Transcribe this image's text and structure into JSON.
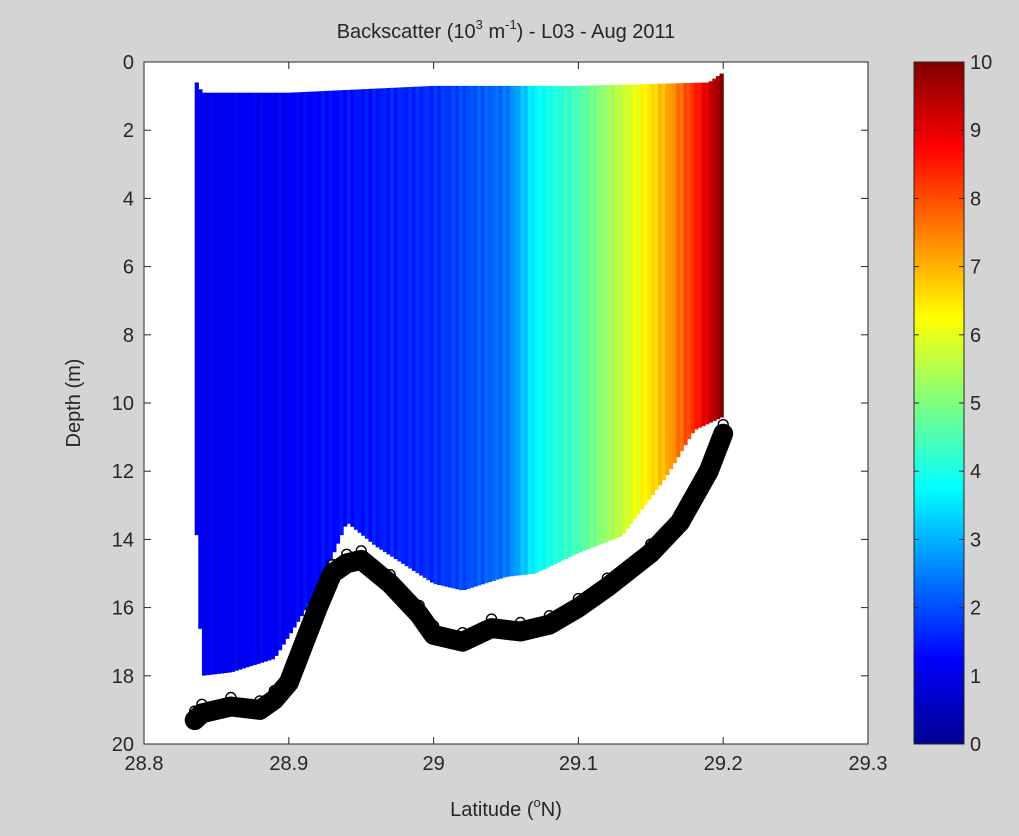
{
  "window": {
    "background": "#d4d4d4"
  },
  "chart_data": {
    "type": "heatmap",
    "title_parts": [
      "Backscatter (10",
      "3",
      " m",
      "-1",
      ") - L03 - Aug 2011"
    ],
    "xlabel_parts": [
      "Latitude (",
      "o",
      "N)"
    ],
    "ylabel": "Depth (m)",
    "xlim": [
      28.8,
      29.3
    ],
    "ylim": [
      0,
      20
    ],
    "y_reversed": true,
    "x_ticks": [
      "28.8",
      "28.9",
      "29",
      "29.1",
      "29.2",
      "29.3"
    ],
    "y_ticks": [
      "0",
      "2",
      "4",
      "6",
      "8",
      "10",
      "12",
      "14",
      "16",
      "18",
      "20"
    ],
    "grid": false,
    "colormap": "jet",
    "colorbar": {
      "label": "",
      "range": [
        0,
        10
      ],
      "ticks": [
        "0",
        "1",
        "2",
        "3",
        "4",
        "5",
        "6",
        "7",
        "8",
        "9",
        "10"
      ]
    },
    "series": [
      {
        "kind": "scatter-field",
        "value_gradient_by_latitude": [
          [
            28.83,
            0.9
          ],
          [
            28.9,
            1.0
          ],
          [
            29.0,
            1.5
          ],
          [
            29.05,
            2.2
          ],
          [
            29.07,
            3.5
          ],
          [
            29.1,
            4.3
          ],
          [
            29.13,
            5.5
          ],
          [
            29.16,
            6.8
          ],
          [
            29.18,
            8.2
          ],
          [
            29.2,
            9.8
          ]
        ],
        "upper_depth": [
          [
            28.835,
            0.5
          ],
          [
            28.84,
            0.9
          ],
          [
            28.9,
            0.9
          ],
          [
            29.0,
            0.7
          ],
          [
            29.1,
            0.7
          ],
          [
            29.19,
            0.6
          ],
          [
            29.2,
            0.3
          ]
        ],
        "lower_depth": [
          [
            28.835,
            12.5
          ],
          [
            28.84,
            18.0
          ],
          [
            28.86,
            17.9
          ],
          [
            28.89,
            17.5
          ],
          [
            28.92,
            15.5
          ],
          [
            28.94,
            13.5
          ],
          [
            28.96,
            14.2
          ],
          [
            29.0,
            15.3
          ],
          [
            29.02,
            15.5
          ],
          [
            29.05,
            15.1
          ],
          [
            29.07,
            15.0
          ],
          [
            29.1,
            14.4
          ],
          [
            29.13,
            13.9
          ],
          [
            29.16,
            12.2
          ],
          [
            29.18,
            10.8
          ],
          [
            29.2,
            10.4
          ]
        ]
      },
      {
        "kind": "bottom-depth",
        "marker": "open-circle",
        "points": [
          [
            28.835,
            19.3
          ],
          [
            28.84,
            19.1
          ],
          [
            28.86,
            18.9
          ],
          [
            28.88,
            19.0
          ],
          [
            28.89,
            18.7
          ],
          [
            28.9,
            18.2
          ],
          [
            28.91,
            17.1
          ],
          [
            28.92,
            16.0
          ],
          [
            28.93,
            15.0
          ],
          [
            28.94,
            14.7
          ],
          [
            28.95,
            14.6
          ],
          [
            28.97,
            15.3
          ],
          [
            28.99,
            16.2
          ],
          [
            29.0,
            16.8
          ],
          [
            29.02,
            17.0
          ],
          [
            29.04,
            16.6
          ],
          [
            29.06,
            16.7
          ],
          [
            29.08,
            16.5
          ],
          [
            29.1,
            16.0
          ],
          [
            29.12,
            15.4
          ],
          [
            29.15,
            14.4
          ],
          [
            29.17,
            13.5
          ],
          [
            29.19,
            12.0
          ],
          [
            29.2,
            10.9
          ]
        ]
      }
    ]
  }
}
